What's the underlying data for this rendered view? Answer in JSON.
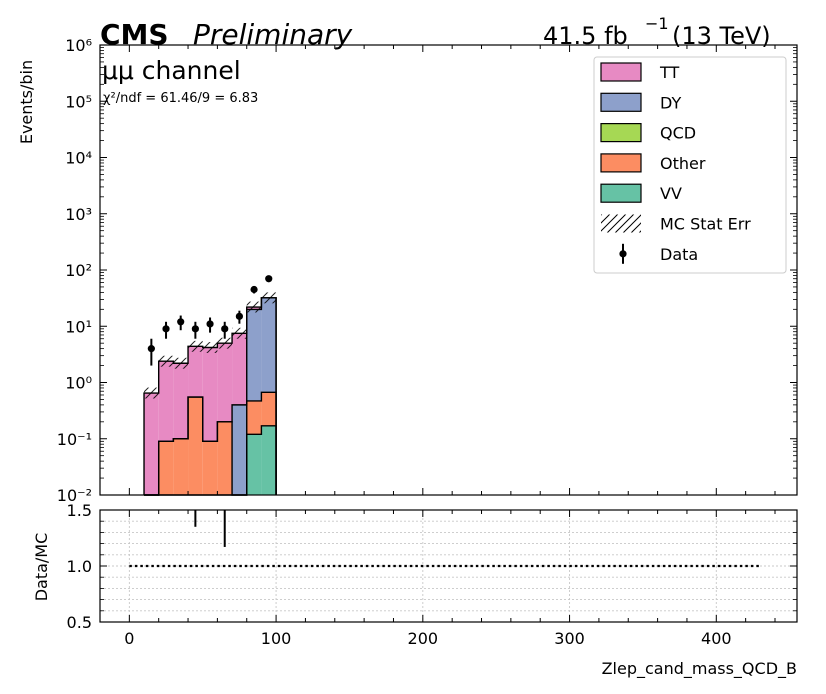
{
  "header": {
    "cms": "CMS",
    "preliminary": "Preliminary",
    "lumi_value": "41.5 fb",
    "lumi_exp": "−1",
    "lumi_energy": "(13 TeV)"
  },
  "annotations": {
    "channel": "μμ channel",
    "chi2": "χ²/ndf = 61.46/9 = 6.83"
  },
  "colors": {
    "TT": "#e78ac3",
    "DY": "#8da0cb",
    "QCD": "#a6d854",
    "Other": "#fc8d62",
    "VV": "#66c2a5"
  },
  "chart_data": [
    {
      "type": "bar",
      "stacked": true,
      "ylabel": "Events/bin",
      "yscale": "log",
      "ylim": [
        0.01,
        1000000
      ],
      "xlim": [
        -20,
        455
      ],
      "y_tick_labels": [
        "10⁻²",
        "10⁻¹",
        "10⁰",
        "10¹",
        "10²",
        "10³",
        "10⁴",
        "10⁵",
        "10⁶"
      ],
      "legend_position": "top-right",
      "bin_edges": [
        10,
        20,
        30,
        40,
        50,
        60,
        70,
        80,
        90,
        100
      ],
      "series": [
        {
          "name": "VV",
          "values": [
            0,
            0,
            0,
            0,
            0,
            0,
            0,
            0.12,
            0.17
          ]
        },
        {
          "name": "Other",
          "values": [
            0,
            0.09,
            0.1,
            0.55,
            0.09,
            0.2,
            0,
            0.35,
            0.5
          ]
        },
        {
          "name": "QCD",
          "values": [
            0,
            0,
            0,
            0,
            0,
            0,
            0,
            0,
            0
          ]
        },
        {
          "name": "DY",
          "values": [
            0,
            0,
            0,
            0,
            0,
            0,
            0.4,
            19.4,
            31.3
          ]
        },
        {
          "name": "TT",
          "values": [
            0.65,
            2.3,
            2.1,
            3.85,
            4.1,
            4.8,
            7.1,
            2.1,
            0
          ]
        }
      ],
      "data": {
        "name": "Data",
        "x": [
          15,
          25,
          35,
          45,
          55,
          65,
          75,
          85,
          95
        ],
        "y": [
          4,
          9,
          12,
          9,
          11,
          9,
          15,
          45,
          70
        ],
        "yerr": [
          2,
          3,
          3.5,
          3,
          3.3,
          3,
          3.9,
          6.7,
          8.4
        ]
      },
      "mc_stat_err_name": "MC Stat Err",
      "legend": [
        "TT",
        "DY",
        "QCD",
        "Other",
        "VV",
        "MC Stat Err",
        "Data"
      ]
    },
    {
      "type": "scatter",
      "ylabel": "Data/MC",
      "xlabel": "Zlep_cand_mass_QCD_B",
      "ylim": [
        0.5,
        1.5
      ],
      "xlim": [
        -20,
        455
      ],
      "y_ticks": [
        "0.5",
        "1.0",
        "1.5"
      ],
      "x_ticks": [
        "0",
        "100",
        "200",
        "300",
        "400"
      ],
      "grid": true,
      "reference_line": 1.0,
      "reference_range": [
        0,
        430
      ],
      "ratio_points": [
        {
          "x": 45,
          "low": 1.35,
          "high": 1.5
        },
        {
          "x": 65,
          "low": 1.17,
          "high": 1.5
        }
      ]
    }
  ]
}
